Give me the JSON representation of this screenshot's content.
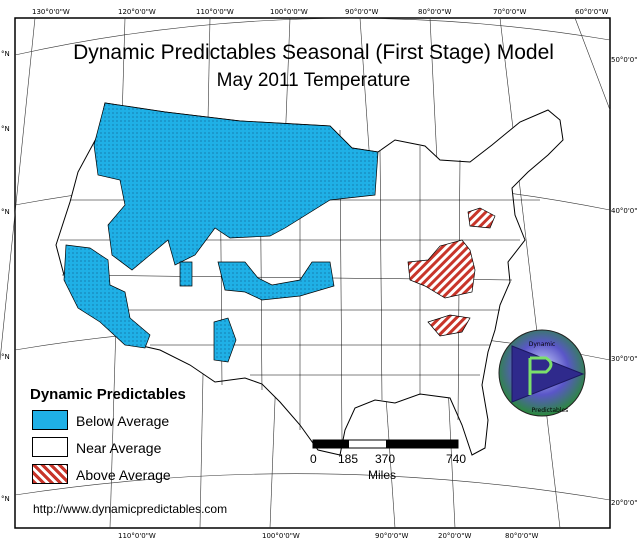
{
  "title": "Dynamic Predictables Seasonal (First Stage) Model",
  "subtitle": "May 2011 Temperature",
  "colors": {
    "below_average": "#1fb0e6",
    "near_average": "#ffffff",
    "above_average_hatch": "#c8352a",
    "border": "#000000"
  },
  "legend": {
    "title": "Dynamic Predictables",
    "items": [
      {
        "key": "below",
        "label": "Below Average",
        "fill": "solid-blue"
      },
      {
        "key": "near",
        "label": "Near Average",
        "fill": "white"
      },
      {
        "key": "above",
        "label": "Above Average",
        "fill": "red-hatch"
      }
    ]
  },
  "scale_bar": {
    "ticks": [
      "0",
      "185",
      "370",
      "740"
    ],
    "unit": "Miles"
  },
  "graticule": {
    "top_longitudes": [
      "130°0'0\"W",
      "120°0'0\"W",
      "110°0'0\"W",
      "100°0'0\"W",
      "90°0'0\"W",
      "80°0'0\"W",
      "70°0'0\"W",
      "60°0'0\"W"
    ],
    "bottom_longitudes": [
      "110°0'0\"W",
      "100°0'0\"W",
      "90°0'0\"W",
      "20°0'0\"W",
      "80°0'0\"W"
    ],
    "right_latitudes": [
      "50°0'0\"",
      "40°0'0\"",
      "30°0'0\"",
      "20°0'0\""
    ],
    "left_latitudes": [
      "°N",
      "°N",
      "°N",
      "°N",
      "°N"
    ]
  },
  "logo": {
    "top_text": "Dynamic",
    "bottom_text": "Predictables",
    "letter": "P"
  },
  "url": "http://www.dynamicpredictables.com"
}
